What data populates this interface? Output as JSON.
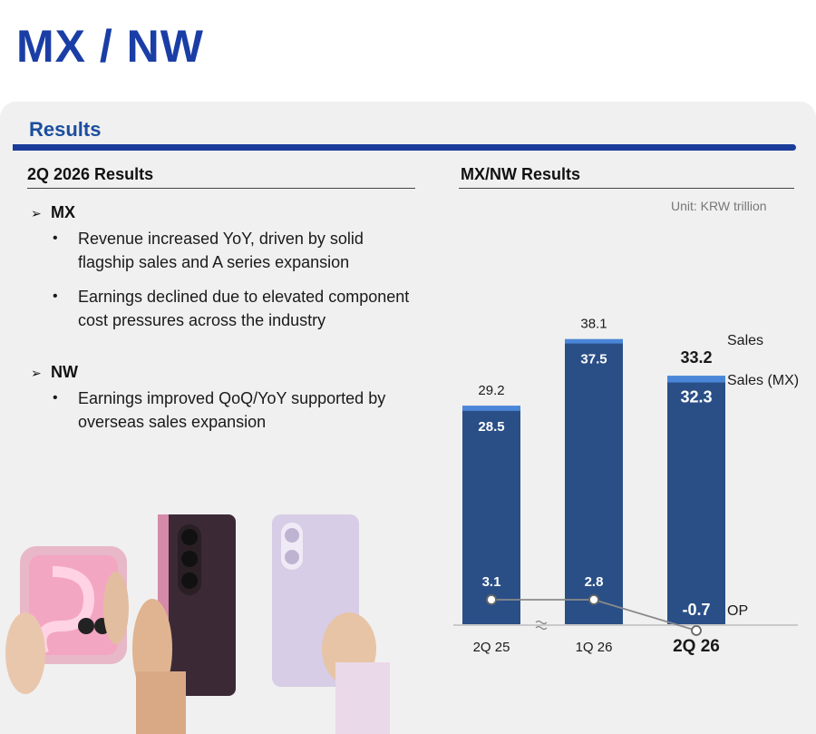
{
  "page": {
    "title": "MX / NW"
  },
  "section": {
    "title": "Results"
  },
  "left": {
    "heading": "2Q 2026 Results",
    "segments": [
      {
        "name": "MX",
        "bullets": [
          [
            "Revenue increased YoY, driven by solid",
            "flagship sales and A series expansion"
          ],
          [
            "Earnings declined due to elevated component",
            "cost pressures across the industry"
          ]
        ]
      },
      {
        "name": "NW",
        "bullets": [
          [
            "Earnings improved QoQ/YoY supported by",
            "overseas sales expansion"
          ]
        ]
      }
    ]
  },
  "right": {
    "heading": "MX/NW Results",
    "unit": "Unit:  KRW trillion"
  },
  "colors": {
    "title": "#1a3ea6",
    "bar_dark": "#2a4f87",
    "bar_light": "#4a86d8",
    "op_line": "#8a8a8a"
  },
  "chart_data": {
    "type": "bar",
    "categories": [
      "2Q 25",
      "1Q 26",
      "2Q 26"
    ],
    "series": [
      {
        "name": "Sales",
        "values": [
          29.2,
          38.1,
          33.2
        ]
      },
      {
        "name": "Sales (MX)",
        "values": [
          28.5,
          37.5,
          32.3
        ]
      },
      {
        "name": "OP",
        "values": [
          3.1,
          2.8,
          -0.7
        ]
      }
    ],
    "value_labels": {
      "sales": [
        "29.2",
        "38.1",
        "33.2"
      ],
      "sales_mx": [
        "28.5",
        "37.5",
        "32.3"
      ],
      "op": [
        "3.1",
        "2.8",
        "-0.7"
      ]
    },
    "axis_break_between": [
      "2Q 25",
      "1Q 26"
    ],
    "legend": [
      "Sales",
      "Sales (MX)",
      "OP"
    ],
    "legend_placement": "right",
    "grid": false
  }
}
